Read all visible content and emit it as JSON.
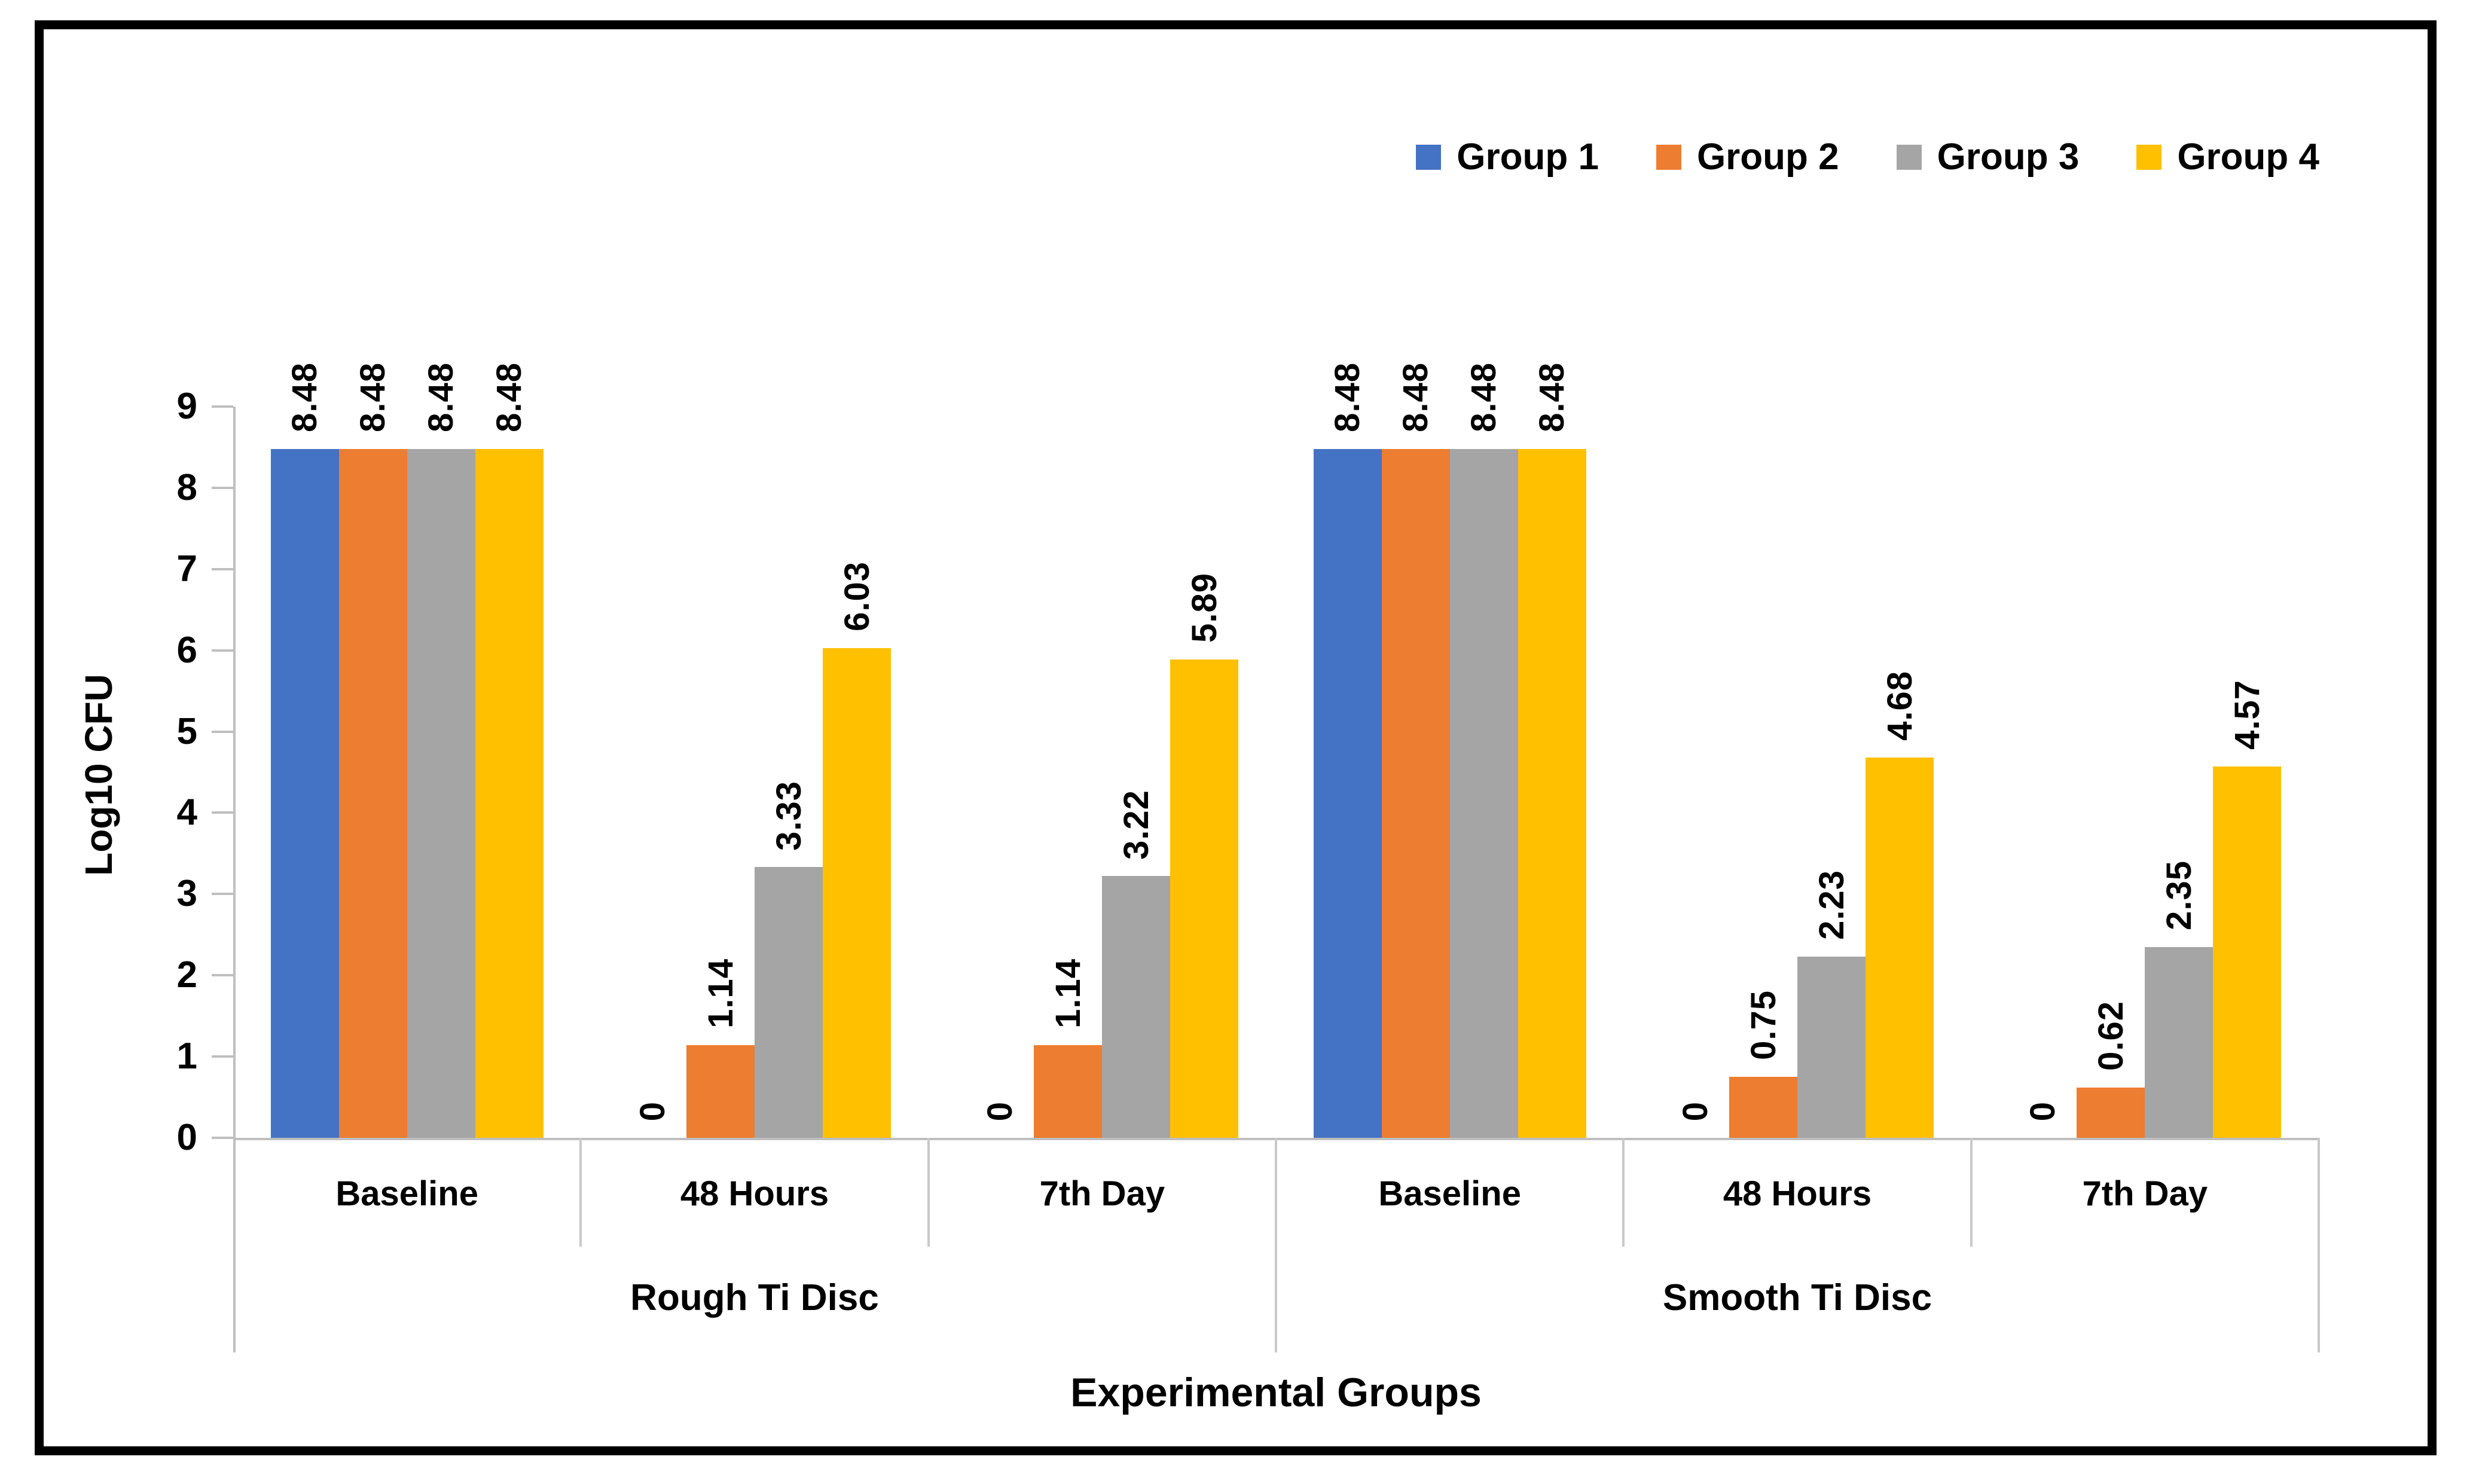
{
  "legend": {
    "position": "top-right",
    "items": [
      {
        "label": "Group 1",
        "color": "#4472C4"
      },
      {
        "label": "Group 2",
        "color": "#ED7D31"
      },
      {
        "label": "Group 3",
        "color": "#A5A5A5"
      },
      {
        "label": "Group 4",
        "color": "#FFC000"
      }
    ]
  },
  "chart_data": {
    "type": "bar",
    "title": "",
    "xlabel": "Experimental Groups",
    "ylabel": "Log10 CFU",
    "ylim": [
      0,
      9
    ],
    "ytick_labels": [
      "0",
      "1",
      "2",
      "3",
      "4",
      "5",
      "6",
      "7",
      "8",
      "9"
    ],
    "grid": false,
    "legend_position": "top-right",
    "group_labels": [
      "Rough Ti Disc",
      "Smooth Ti Disc"
    ],
    "subcategories": [
      "Baseline",
      "48 Hours",
      "7th Day"
    ],
    "categories": [
      "Rough Ti Disc - Baseline",
      "Rough Ti Disc - 48 Hours",
      "Rough Ti Disc - 7th Day",
      "Smooth Ti Disc - Baseline",
      "Smooth Ti Disc - 48 Hours",
      "Smooth Ti Disc - 7th Day"
    ],
    "category_keys": [
      "rough-baseline",
      "rough-48h",
      "rough-7d",
      "smooth-baseline",
      "smooth-48h",
      "smooth-7d"
    ],
    "series": [
      {
        "name": "Group 1",
        "color": "#4472C4",
        "values": [
          8.48,
          0,
          0,
          8.48,
          0,
          0
        ],
        "labels": [
          "8.48",
          "0",
          "0",
          "8.48",
          "0",
          "0"
        ]
      },
      {
        "name": "Group 2",
        "color": "#ED7D31",
        "values": [
          8.48,
          1.14,
          1.14,
          8.48,
          0.75,
          0.62
        ],
        "labels": [
          "8.48",
          "1.14",
          "1.14",
          "8.48",
          "0.75",
          "0.62"
        ]
      },
      {
        "name": "Group 3",
        "color": "#A5A5A5",
        "values": [
          8.48,
          3.33,
          3.22,
          8.48,
          2.23,
          2.35
        ],
        "labels": [
          "8.48",
          "3.33",
          "3.22",
          "8.48",
          "2.23",
          "2.35"
        ]
      },
      {
        "name": "Group 4",
        "color": "#FFC000",
        "values": [
          8.48,
          6.03,
          5.89,
          8.48,
          4.68,
          4.57
        ],
        "labels": [
          "8.48",
          "6.03",
          "5.89",
          "8.48",
          "4.68",
          "4.57"
        ]
      }
    ],
    "colors": {
      "axis_line": "#BFBFBF",
      "separator_line": "#C9C9C9",
      "text": "#000000",
      "frame_border": "#000000",
      "background": "#FFFFFF"
    },
    "data_label_rotation_deg": -90
  }
}
